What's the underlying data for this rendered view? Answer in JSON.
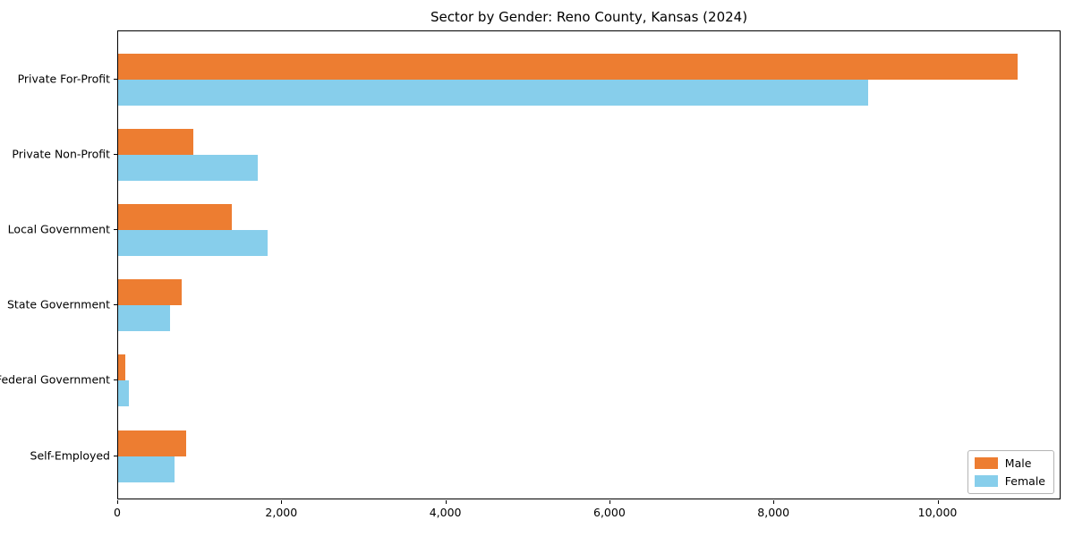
{
  "chart_data": {
    "type": "bar",
    "orientation": "horizontal",
    "title": "Sector by Gender: Reno County, Kansas (2024)",
    "categories": [
      "Private For-Profit",
      "Private Non-Profit",
      "Local Government",
      "State Government",
      "Federal Government",
      "Self-Employed"
    ],
    "series": [
      {
        "name": "Male",
        "color": "#ED7D31",
        "values": [
          10960,
          920,
          1390,
          775,
          90,
          830
        ]
      },
      {
        "name": "Female",
        "color": "#87CEEB",
        "values": [
          9140,
          1700,
          1820,
          635,
          130,
          690
        ]
      }
    ],
    "xlim": [
      0,
      11500
    ],
    "xticks": {
      "values": [
        0,
        2000,
        4000,
        6000,
        8000,
        10000
      ],
      "labels": [
        "0",
        "2,000",
        "4,000",
        "6,000",
        "8,000",
        "10,000"
      ]
    },
    "xlabel": "",
    "ylabel": "",
    "grid": false,
    "legend": {
      "position": "lower right",
      "entries": [
        "Male",
        "Female"
      ]
    }
  }
}
